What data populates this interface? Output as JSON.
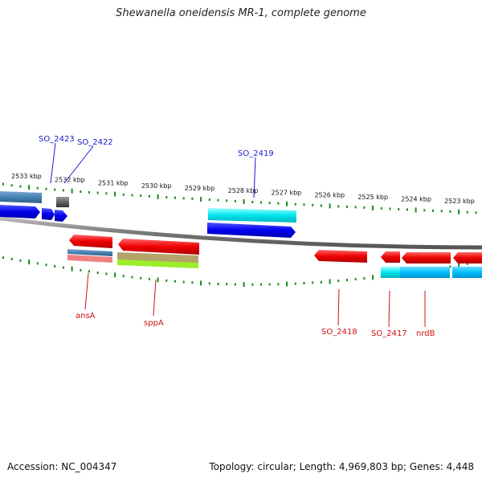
{
  "title": "Shewanella oneidensis MR-1, complete genome",
  "footer": {
    "accession": "Accession: NC_004347",
    "topology": "Topology: circular; Length: 4,969,803 bp; Genes: 4,448"
  },
  "scale_labels": [
    "2533 kbp",
    "2532 kbp",
    "2531 kbp",
    "2530 kbp",
    "2529 kbp",
    "2528 kbp",
    "2527 kbp",
    "2526 kbp",
    "2525 kbp",
    "2524 kbp",
    "2523 kbp"
  ],
  "gene_labels": {
    "top": [
      "SO_2423",
      "SO_2422",
      "SO_2419"
    ],
    "bottom": [
      "ansA",
      "sppA",
      "SO_2418",
      "SO_2417",
      "nrdB"
    ]
  },
  "colors": {
    "forward_gene": "#0000ee",
    "reverse_gene": "#ee0000",
    "tick": "#1a8a1a",
    "backbone": "#888888",
    "cyan_feature": "#00e5ee",
    "steelblue_feature": "#4682b4"
  }
}
